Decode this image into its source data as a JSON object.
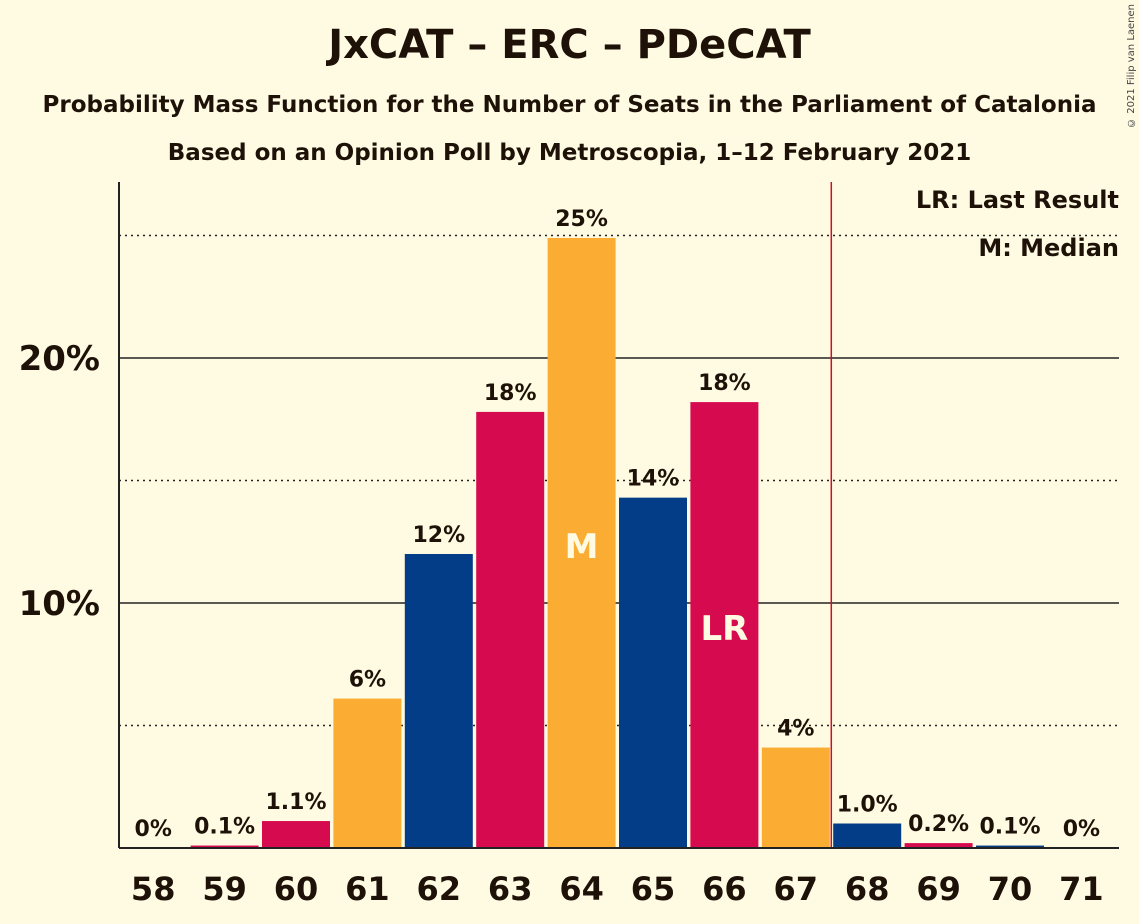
{
  "header": {
    "title": "JxCAT – ERC – PDeCAT",
    "subtitle1": "Probability Mass Function for the Number of Seats in the Parliament of Catalonia",
    "subtitle2": "Based on an Opinion Poll by Metroscopia, 1–12 February 2021",
    "copyright": "© 2021 Filip van Laenen"
  },
  "legend": {
    "lr": "LR: Last Result",
    "m": "M: Median"
  },
  "colors": {
    "background": "#fffbe3",
    "blue": "#043d87",
    "red": "#d60b4f",
    "orange": "#fbad33",
    "last_result_line": "#d60b20"
  },
  "chart_data": {
    "type": "bar",
    "categories": [
      "58",
      "59",
      "60",
      "61",
      "62",
      "63",
      "64",
      "65",
      "66",
      "67",
      "68",
      "69",
      "70",
      "71"
    ],
    "values": [
      0,
      0.1,
      1.1,
      6,
      12,
      18,
      25,
      14,
      18,
      4,
      1.0,
      0.2,
      0.1,
      0
    ],
    "plot_values": [
      0,
      0.1,
      1.1,
      6.1,
      12.0,
      17.8,
      24.9,
      14.3,
      18.2,
      4.1,
      1.0,
      0.2,
      0.1,
      0
    ],
    "data_labels": [
      "0%",
      "0.1%",
      "1.1%",
      "6%",
      "12%",
      "18%",
      "25%",
      "14%",
      "18%",
      "4%",
      "1.0%",
      "0.2%",
      "0.1%",
      "0%"
    ],
    "bar_colors": [
      "blue",
      "red",
      "red",
      "orange",
      "blue",
      "red",
      "orange",
      "blue",
      "red",
      "orange",
      "blue",
      "red",
      "blue",
      "red"
    ],
    "y_ticks": [
      {
        "value": 10,
        "label": "10%"
      },
      {
        "value": 20,
        "label": "20%"
      }
    ],
    "minor_gridlines": [
      5,
      15,
      25
    ],
    "ylim": [
      0,
      27
    ],
    "median": {
      "category": "64",
      "label": "M"
    },
    "last_result": {
      "category": "66",
      "label": "LR"
    },
    "majority_line_after": "67",
    "xlabel": "",
    "ylabel": ""
  }
}
